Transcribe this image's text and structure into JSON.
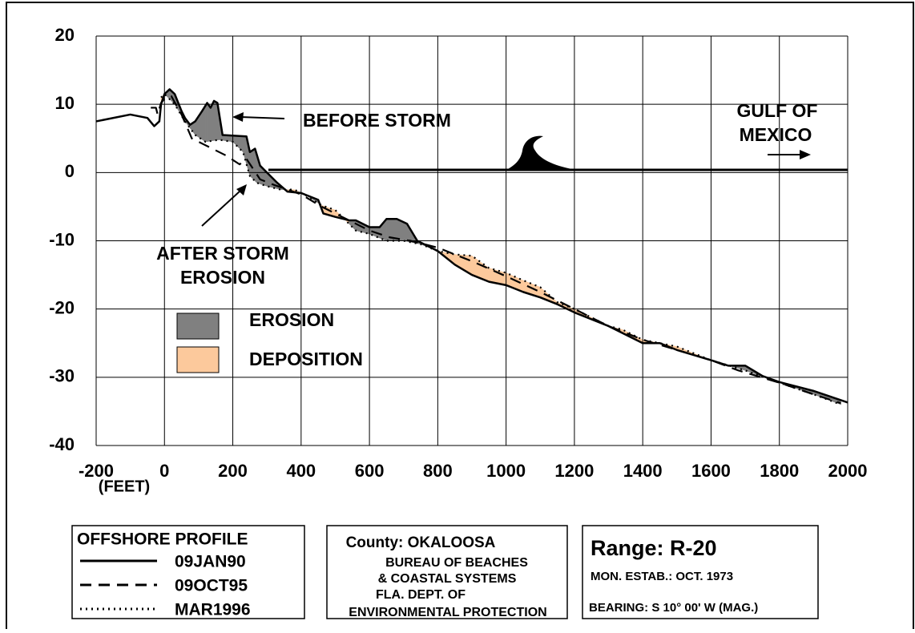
{
  "chart_data": {
    "type": "line",
    "xlim": [
      -200,
      2000
    ],
    "xticks": [
      -200,
      0,
      200,
      400,
      600,
      800,
      1000,
      1200,
      1400,
      1600,
      1800,
      2000
    ],
    "ylim": [
      -40,
      20
    ],
    "yticks": [
      -40,
      -30,
      -20,
      -10,
      0,
      10,
      20
    ],
    "x_unit_label": "(FEET)",
    "grid": true,
    "series": [
      {
        "name": "09JAN90",
        "style": "solid",
        "color": "#000000",
        "x": [
          -200,
          -100,
          -50,
          -30,
          -15,
          -10,
          0,
          15,
          30,
          50,
          60,
          75,
          90,
          110,
          125,
          135,
          145,
          155,
          170,
          240,
          250,
          265,
          280,
          300,
          330,
          360,
          400,
          450,
          465,
          500,
          540,
          560,
          600,
          630,
          650,
          680,
          710,
          740,
          800,
          850,
          900,
          950,
          1000,
          1050,
          1100,
          1150,
          1200,
          1300,
          1400,
          1450,
          1500,
          1600,
          1650,
          1700,
          1750,
          1800,
          1900,
          2000
        ],
        "values": [
          7.5,
          8.5,
          8,
          6.8,
          7.5,
          10,
          11.5,
          12.2,
          11.5,
          9,
          8,
          7,
          7.5,
          9,
          10.2,
          9.5,
          10.5,
          10.2,
          5.5,
          5.3,
          3,
          3.5,
          1,
          0,
          -1.5,
          -2.8,
          -3,
          -4,
          -6,
          -6.5,
          -7,
          -7,
          -8,
          -8,
          -6.8,
          -6.8,
          -7.5,
          -10,
          -11.5,
          -13.5,
          -15,
          -16,
          -16.5,
          -17.5,
          -18.3,
          -19.3,
          -20.5,
          -22.5,
          -25,
          -25,
          -26,
          -27.5,
          -28.3,
          -28.3,
          -29.8,
          -30.7,
          -32,
          -33.7
        ]
      },
      {
        "name": "09OCT95",
        "style": "dashed",
        "color": "#000000",
        "x": [
          -40,
          -25,
          -20,
          -10,
          0,
          20,
          50,
          80,
          100,
          140,
          180,
          220,
          240,
          260,
          280,
          320,
          360,
          400,
          460,
          520,
          600,
          660,
          720,
          800,
          900,
          1000,
          1100,
          1200,
          1300,
          1400,
          1500,
          1600,
          1680,
          1800,
          1900,
          1980
        ],
        "values": [
          9.5,
          9.5,
          8.5,
          10.2,
          10.8,
          11.2,
          8.5,
          5,
          4.5,
          3.5,
          2.5,
          1.2,
          2,
          0.5,
          -1,
          -1.8,
          -2.5,
          -3.2,
          -5,
          -6.5,
          -8.5,
          -9.5,
          -10,
          -11,
          -13,
          -15.2,
          -17.5,
          -20,
          -22.5,
          -24.5,
          -26,
          -27.5,
          -29,
          -30.8,
          -32.5,
          -33.8
        ]
      },
      {
        "name": "MAR1996",
        "style": "dotted",
        "color": "#000000",
        "x": [
          -10,
          0,
          30,
          60,
          90,
          120,
          160,
          200,
          230,
          250,
          270,
          300,
          340,
          380,
          420,
          460,
          500,
          560,
          600,
          650,
          700,
          750,
          800,
          850,
          900,
          950,
          1000,
          1050,
          1100,
          1150,
          1200,
          1300,
          1340,
          1400,
          1500,
          1600,
          1700,
          1800,
          1900,
          1980
        ],
        "values": [
          11,
          11.5,
          10,
          7.5,
          5.5,
          4.5,
          4.8,
          4.5,
          3,
          -0.5,
          -1.5,
          -2,
          -2.5,
          -2.5,
          -3.5,
          -4.8,
          -5.5,
          -8.5,
          -9,
          -10,
          -10,
          -10.5,
          -11.5,
          -12,
          -12.2,
          -14,
          -14.7,
          -15.8,
          -16.8,
          -19,
          -20,
          -22.5,
          -23,
          -24.5,
          -25.5,
          -27.5,
          -29,
          -30.8,
          -32.5,
          -34
        ]
      }
    ],
    "shading": [
      {
        "name": "EROSION",
        "color": "#808080"
      },
      {
        "name": "DEPOSITION",
        "color": "#fcc99c"
      }
    ],
    "annotations": {
      "before_storm": "BEFORE STORM",
      "after_storm": [
        "AFTER STORM",
        "EROSION"
      ],
      "gulf": [
        "GULF OF",
        "MEXICO"
      ]
    },
    "legend_title": "OFFSHORE PROFILE",
    "agency": [
      "County: OKALOOSA",
      "BUREAU OF BEACHES",
      "& COASTAL SYSTEMS",
      "FLA. DEPT. OF",
      "ENVIRONMENTAL PROTECTION"
    ],
    "range": {
      "title": "Range:  R-20",
      "established": "MON. ESTAB.: OCT. 1973",
      "bearing": "BEARING:  S 10° 00'  W  (MAG.)"
    }
  }
}
